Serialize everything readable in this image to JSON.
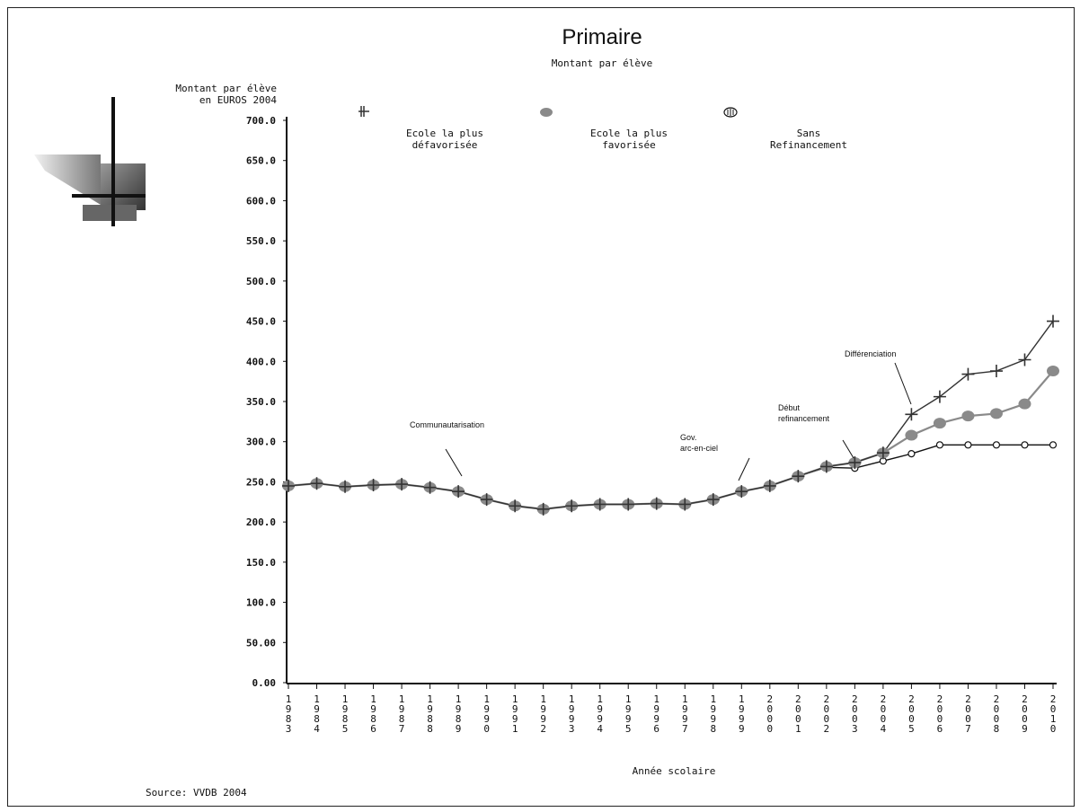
{
  "page": {
    "title": "Primaire",
    "subtitle": "Montant par élève",
    "source": "Source: VVDB 2004"
  },
  "chart_data": {
    "type": "line",
    "title": "Primaire",
    "subtitle": "Montant par élève",
    "ylabel": "Montant par élève\nen EUROS 2004",
    "xlabel": "Année scolaire",
    "ylim": [
      0,
      700
    ],
    "yticks": [
      "0.00",
      "50.00",
      "100.0",
      "150.0",
      "200.0",
      "250.0",
      "300.0",
      "350.0",
      "400.0",
      "450.0",
      "500.0",
      "550.0",
      "600.0",
      "650.0",
      "700.0"
    ],
    "categories": [
      "1983",
      "1984",
      "1985",
      "1986",
      "1987",
      "1988",
      "1989",
      "1990",
      "1991",
      "1992",
      "1993",
      "1994",
      "1995",
      "1996",
      "1997",
      "1998",
      "1999",
      "2000",
      "2001",
      "2002",
      "2003",
      "2004",
      "2005",
      "2006",
      "2007",
      "2008",
      "2009",
      "2010"
    ],
    "series": [
      {
        "name": "Ecole la plus\ndéfavorisée",
        "marker": "plus",
        "color": "#333333",
        "values": [
          245,
          248,
          244,
          246,
          247,
          243,
          238,
          228,
          220,
          216,
          220,
          222,
          222,
          223,
          222,
          228,
          238,
          245,
          257,
          269,
          274,
          286,
          334,
          356,
          384,
          388,
          402,
          450
        ]
      },
      {
        "name": "Ecole la plus\nfavorisée",
        "marker": "filled-circle",
        "color": "#8a8a8a",
        "values": [
          245,
          248,
          244,
          246,
          247,
          243,
          238,
          228,
          220,
          216,
          220,
          222,
          222,
          223,
          222,
          228,
          238,
          245,
          257,
          269,
          274,
          286,
          308,
          323,
          332,
          335,
          347,
          388
        ]
      },
      {
        "name": "Sans\nRefinancement",
        "marker": "open-circle",
        "color": "#111111",
        "values": [
          245,
          248,
          244,
          246,
          247,
          243,
          238,
          228,
          220,
          216,
          220,
          222,
          222,
          223,
          222,
          228,
          238,
          245,
          257,
          268,
          267,
          276,
          285,
          296,
          296,
          296,
          296,
          296
        ]
      }
    ],
    "annotations": [
      {
        "text": "Communautarisation",
        "at_year": "1989"
      },
      {
        "text": "Gov.\narc-en-ciel",
        "at_year": "1999"
      },
      {
        "text": "Début\nrefinancement",
        "at_year": "2003"
      },
      {
        "text": "Différenciation",
        "at_year": "2005"
      }
    ],
    "legend_position": "top",
    "grid": false
  }
}
